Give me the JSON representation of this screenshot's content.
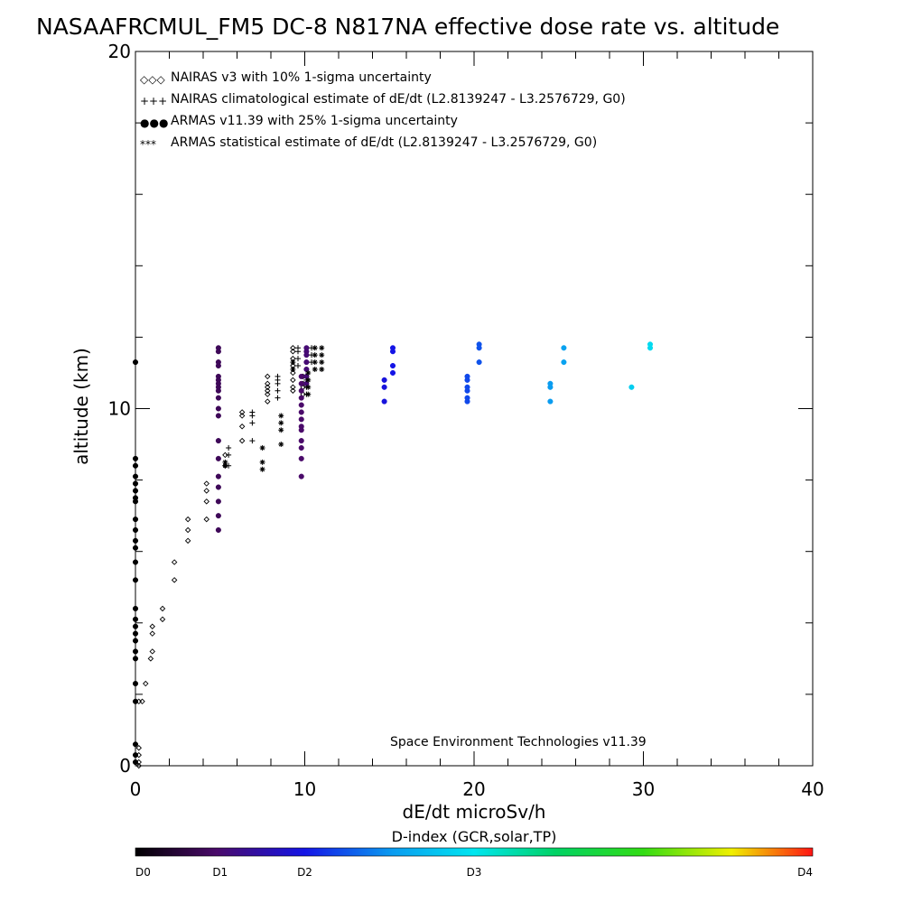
{
  "chart_data": {
    "type": "scatter",
    "title": "NASAAFRCMUL_FM5 DC-8   N817NA effective dose rate vs. altitude",
    "xlabel": "dE/dt microSv/h",
    "ylabel": "altitude (km)",
    "xlim": [
      0,
      40
    ],
    "ylim": [
      0,
      20
    ],
    "x_ticks": [
      {
        "value": 0,
        "label": "0"
      },
      {
        "value": 10,
        "label": "10"
      },
      {
        "value": 20,
        "label": "20"
      },
      {
        "value": 30,
        "label": "30"
      },
      {
        "value": 40,
        "label": "40"
      }
    ],
    "y_ticks": [
      {
        "value": 0,
        "label": "0"
      },
      {
        "value": 10,
        "label": "10"
      },
      {
        "value": 20,
        "label": "20"
      }
    ],
    "x_minor_step": 2,
    "y_minor_step": 2,
    "grid": false,
    "legend_position": "top-left",
    "legend": [
      {
        "symbol": "◇◇◇",
        "color": "#000000",
        "text": "NAIRAS v3 with 10% 1-sigma uncertainty"
      },
      {
        "symbol": "+++",
        "color": "#000000",
        "text": "NAIRAS climatological estimate of dE/dt (L2.8139247 - L3.2576729, G0)"
      },
      {
        "symbol": "●●●",
        "color": "#1a3fd6",
        "text": "ARMAS v11.39 with 25% 1-sigma uncertainty"
      },
      {
        "symbol": "***",
        "color": "#000000",
        "text": "ARMAS statistical estimate of dE/dt (L2.8139247 - L3.2576729, G0)"
      }
    ],
    "annotation": "Space Environment Technologies v11.39",
    "colorbar": {
      "title": "D-index (GCR,solar,TP)",
      "labels": [
        "D0",
        "D1",
        "D2",
        "D3",
        "D4"
      ],
      "label_positions": [
        0,
        0.125,
        0.25,
        0.5,
        1.0
      ],
      "stops": [
        {
          "pos": 0.0,
          "color": "#000000"
        },
        {
          "pos": 0.12,
          "color": "#4a0a6a"
        },
        {
          "pos": 0.25,
          "color": "#1414e6"
        },
        {
          "pos": 0.38,
          "color": "#0a9cf0"
        },
        {
          "pos": 0.5,
          "color": "#00e6f0"
        },
        {
          "pos": 0.62,
          "color": "#00d264"
        },
        {
          "pos": 0.75,
          "color": "#32dc14"
        },
        {
          "pos": 0.88,
          "color": "#f0f000"
        },
        {
          "pos": 1.0,
          "color": "#ff1414"
        }
      ]
    },
    "series": [
      {
        "name": "NAIRAS v3 with 10% 1-sigma uncertainty",
        "marker": "diamond",
        "color": "#000000",
        "points": [
          [
            0.2,
            0.0
          ],
          [
            0.2,
            0.1
          ],
          [
            0.2,
            0.3
          ],
          [
            0.2,
            0.5
          ],
          [
            0.2,
            1.8
          ],
          [
            0.4,
            1.8
          ],
          [
            0.6,
            2.3
          ],
          [
            0.9,
            3.0
          ],
          [
            1.0,
            3.2
          ],
          [
            1.0,
            3.7
          ],
          [
            1.0,
            3.9
          ],
          [
            1.6,
            4.1
          ],
          [
            1.6,
            4.4
          ],
          [
            2.3,
            5.2
          ],
          [
            2.3,
            5.7
          ],
          [
            3.1,
            6.3
          ],
          [
            3.1,
            6.6
          ],
          [
            3.1,
            6.9
          ],
          [
            4.2,
            6.9
          ],
          [
            4.2,
            7.4
          ],
          [
            4.2,
            7.7
          ],
          [
            4.2,
            7.9
          ],
          [
            5.3,
            8.4
          ],
          [
            5.3,
            8.7
          ],
          [
            6.3,
            9.1
          ],
          [
            6.3,
            9.5
          ],
          [
            6.3,
            9.8
          ],
          [
            6.3,
            9.9
          ],
          [
            7.8,
            10.2
          ],
          [
            7.8,
            10.4
          ],
          [
            7.8,
            10.5
          ],
          [
            7.8,
            10.6
          ],
          [
            7.8,
            10.7
          ],
          [
            7.8,
            10.9
          ],
          [
            9.3,
            10.5
          ],
          [
            9.3,
            10.6
          ],
          [
            9.3,
            10.8
          ],
          [
            9.3,
            11.0
          ],
          [
            9.3,
            11.2
          ],
          [
            9.3,
            11.4
          ],
          [
            9.3,
            11.6
          ],
          [
            9.3,
            11.7
          ],
          [
            9.9,
            10.4
          ],
          [
            9.9,
            10.6
          ],
          [
            9.9,
            10.7
          ],
          [
            9.9,
            10.9
          ]
        ]
      },
      {
        "name": "NAIRAS climatological estimate of dE/dt (L2.8139247 - L3.2576729, G0)",
        "marker": "plus",
        "color": "#000000",
        "points": [
          [
            5.5,
            8.4
          ],
          [
            5.5,
            8.7
          ],
          [
            5.5,
            8.9
          ],
          [
            6.9,
            9.1
          ],
          [
            6.9,
            9.6
          ],
          [
            6.9,
            9.8
          ],
          [
            6.9,
            9.9
          ],
          [
            8.4,
            10.3
          ],
          [
            8.4,
            10.5
          ],
          [
            8.4,
            10.7
          ],
          [
            8.4,
            10.8
          ],
          [
            8.4,
            10.9
          ],
          [
            9.6,
            11.2
          ],
          [
            9.6,
            11.4
          ],
          [
            9.6,
            11.6
          ],
          [
            9.6,
            11.7
          ],
          [
            10.1,
            10.4
          ],
          [
            10.1,
            10.6
          ],
          [
            10.1,
            10.8
          ],
          [
            10.1,
            10.9
          ],
          [
            10.4,
            11.3
          ],
          [
            10.4,
            11.5
          ],
          [
            10.4,
            11.7
          ]
        ]
      },
      {
        "name": "ARMAS v11.39 with 25% 1-sigma uncertainty",
        "marker": "circle",
        "points": [
          [
            0.0,
            0.1,
            0.0
          ],
          [
            0.0,
            0.3,
            0.0
          ],
          [
            0.0,
            0.6,
            0.0
          ],
          [
            0.0,
            1.8,
            0.0
          ],
          [
            0.0,
            2.3,
            0.0
          ],
          [
            0.0,
            3.0,
            0.0
          ],
          [
            0.0,
            3.2,
            0.0
          ],
          [
            0.0,
            3.5,
            0.0
          ],
          [
            0.0,
            3.7,
            0.0
          ],
          [
            0.0,
            3.9,
            0.0
          ],
          [
            0.0,
            4.1,
            0.0
          ],
          [
            0.0,
            4.4,
            0.0
          ],
          [
            0.0,
            5.2,
            0.0
          ],
          [
            0.0,
            5.7,
            0.0
          ],
          [
            0.0,
            6.1,
            0.0
          ],
          [
            0.0,
            6.3,
            0.0
          ],
          [
            0.0,
            6.6,
            0.0
          ],
          [
            0.0,
            6.9,
            0.0
          ],
          [
            0.0,
            7.4,
            0.0
          ],
          [
            0.0,
            7.5,
            0.0
          ],
          [
            0.0,
            7.7,
            0.0
          ],
          [
            0.0,
            7.9,
            0.0
          ],
          [
            0.0,
            8.1,
            0.0
          ],
          [
            0.0,
            8.4,
            0.0
          ],
          [
            0.0,
            8.6,
            0.0
          ],
          [
            0.0,
            11.3,
            0.0
          ],
          [
            4.9,
            6.6,
            0.1
          ],
          [
            4.9,
            7.0,
            0.1
          ],
          [
            4.9,
            7.4,
            0.1
          ],
          [
            4.9,
            7.8,
            0.1
          ],
          [
            4.9,
            8.1,
            0.1
          ],
          [
            4.9,
            8.6,
            0.1
          ],
          [
            4.9,
            9.1,
            0.1
          ],
          [
            4.9,
            9.8,
            0.1
          ],
          [
            4.9,
            10.0,
            0.1
          ],
          [
            4.9,
            10.3,
            0.1
          ],
          [
            4.9,
            10.5,
            0.1
          ],
          [
            4.9,
            10.6,
            0.1
          ],
          [
            4.9,
            10.7,
            0.1
          ],
          [
            4.9,
            10.8,
            0.1
          ],
          [
            4.9,
            10.9,
            0.1
          ],
          [
            4.9,
            11.2,
            0.1
          ],
          [
            4.9,
            11.3,
            0.1
          ],
          [
            4.9,
            11.6,
            0.1
          ],
          [
            4.9,
            11.7,
            0.1
          ],
          [
            9.8,
            8.1,
            0.12
          ],
          [
            9.8,
            8.6,
            0.12
          ],
          [
            9.8,
            8.9,
            0.12
          ],
          [
            9.8,
            9.1,
            0.12
          ],
          [
            9.8,
            9.4,
            0.12
          ],
          [
            9.8,
            9.5,
            0.12
          ],
          [
            9.8,
            9.7,
            0.12
          ],
          [
            9.8,
            9.9,
            0.12
          ],
          [
            9.8,
            10.1,
            0.12
          ],
          [
            9.8,
            10.3,
            0.12
          ],
          [
            9.8,
            10.5,
            0.12
          ],
          [
            9.8,
            10.7,
            0.12
          ],
          [
            9.8,
            10.9,
            0.12
          ],
          [
            10.1,
            10.7,
            0.13
          ],
          [
            10.1,
            10.9,
            0.13
          ],
          [
            10.1,
            11.1,
            0.13
          ],
          [
            10.1,
            11.3,
            0.13
          ],
          [
            10.1,
            11.5,
            0.13
          ],
          [
            10.1,
            11.6,
            0.13
          ],
          [
            10.1,
            11.7,
            0.13
          ],
          [
            14.7,
            10.2,
            0.24
          ],
          [
            14.7,
            10.6,
            0.24
          ],
          [
            14.7,
            10.8,
            0.24
          ],
          [
            15.2,
            11.0,
            0.25
          ],
          [
            15.2,
            11.2,
            0.25
          ],
          [
            15.2,
            11.6,
            0.25
          ],
          [
            15.2,
            11.7,
            0.25
          ],
          [
            19.6,
            10.2,
            0.3
          ],
          [
            19.6,
            10.3,
            0.3
          ],
          [
            19.6,
            10.5,
            0.3
          ],
          [
            19.6,
            10.6,
            0.3
          ],
          [
            19.6,
            10.8,
            0.3
          ],
          [
            19.6,
            10.9,
            0.3
          ],
          [
            20.3,
            11.3,
            0.31
          ],
          [
            20.3,
            11.7,
            0.31
          ],
          [
            20.3,
            11.8,
            0.31
          ],
          [
            24.5,
            10.2,
            0.38
          ],
          [
            24.5,
            10.6,
            0.38
          ],
          [
            24.5,
            10.7,
            0.38
          ],
          [
            25.3,
            11.3,
            0.39
          ],
          [
            25.3,
            11.7,
            0.39
          ],
          [
            29.3,
            10.6,
            0.46
          ],
          [
            30.4,
            11.7,
            0.48
          ],
          [
            30.4,
            11.8,
            0.48
          ]
        ]
      },
      {
        "name": "ARMAS statistical estimate of dE/dt (L2.8139247 - L3.2576729, G0)",
        "marker": "asterisk",
        "color": "#000000",
        "points": [
          [
            5.3,
            8.4
          ],
          [
            5.3,
            8.5
          ],
          [
            7.5,
            8.3
          ],
          [
            7.5,
            8.5
          ],
          [
            7.5,
            8.9
          ],
          [
            8.6,
            9.0
          ],
          [
            8.6,
            9.4
          ],
          [
            8.6,
            9.6
          ],
          [
            8.6,
            9.8
          ],
          [
            9.3,
            11.1
          ],
          [
            9.3,
            11.3
          ],
          [
            10.2,
            10.4
          ],
          [
            10.2,
            10.6
          ],
          [
            10.2,
            10.8
          ],
          [
            10.2,
            11.0
          ],
          [
            10.6,
            11.1
          ],
          [
            10.6,
            11.3
          ],
          [
            10.6,
            11.5
          ],
          [
            10.6,
            11.7
          ],
          [
            11.0,
            11.1
          ],
          [
            11.0,
            11.3
          ],
          [
            11.0,
            11.5
          ],
          [
            11.0,
            11.7
          ]
        ]
      }
    ]
  }
}
